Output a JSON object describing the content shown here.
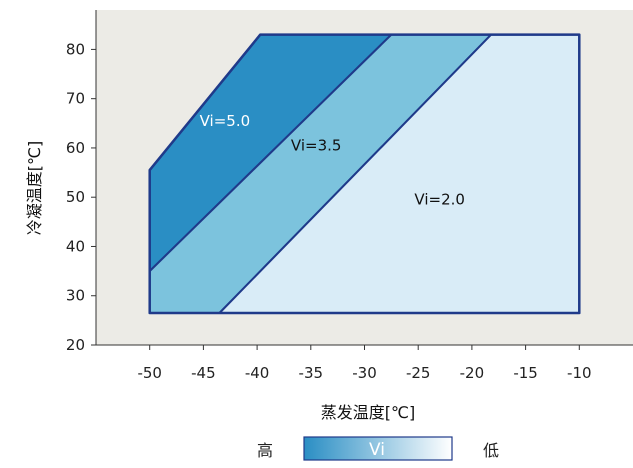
{
  "chart_data": {
    "type": "area",
    "xlabel": "蒸发温度[℃]",
    "ylabel": "冷凝温度[℃]",
    "xlim": [
      -55,
      -5
    ],
    "ylim": [
      20,
      88
    ],
    "x_ticks": [
      -50,
      -45,
      -40,
      -35,
      -30,
      -25,
      -20,
      -15,
      -10
    ],
    "y_ticks": [
      20,
      30,
      40,
      50,
      60,
      70,
      80
    ],
    "grid": false,
    "series": [
      {
        "name": "Vi=5.0",
        "color": "#2a8ec4",
        "label_color": "#ffffff",
        "label_at": [
          -43,
          64.5
        ],
        "polygon": [
          [
            -50,
            55.5
          ],
          [
            -39.7,
            83
          ],
          [
            -27.5,
            83
          ],
          [
            -50,
            35
          ]
        ]
      },
      {
        "name": "Vi=3.5",
        "color": "#7cc3dd",
        "label_color": "#111111",
        "label_at": [
          -34.5,
          59.5
        ],
        "polygon": [
          [
            -50,
            35
          ],
          [
            -27.5,
            83
          ],
          [
            -18.2,
            83
          ],
          [
            -43.5,
            26.5
          ],
          [
            -50,
            26.5
          ]
        ]
      },
      {
        "name": "Vi=2.0",
        "color": "#d9ecf7",
        "label_color": "#111111",
        "label_at": [
          -23,
          48.5
        ],
        "polygon": [
          [
            -43.5,
            26.5
          ],
          [
            -18.2,
            83
          ],
          [
            -10,
            83
          ],
          [
            -10,
            26.5
          ]
        ]
      }
    ],
    "envelope": [
      [
        -50,
        55.5
      ],
      [
        -39.7,
        83
      ],
      [
        -10,
        83
      ],
      [
        -10,
        26.5
      ],
      [
        -50,
        26.5
      ]
    ],
    "legend": {
      "high_label": "高",
      "bar_label": "Vi",
      "low_label": "低",
      "colors": [
        "#2a8ec4",
        "#ffffff"
      ]
    }
  },
  "colors": {
    "plot_background": "#ecebe6",
    "outline": "#1f3a8a",
    "axis": "#333333"
  }
}
